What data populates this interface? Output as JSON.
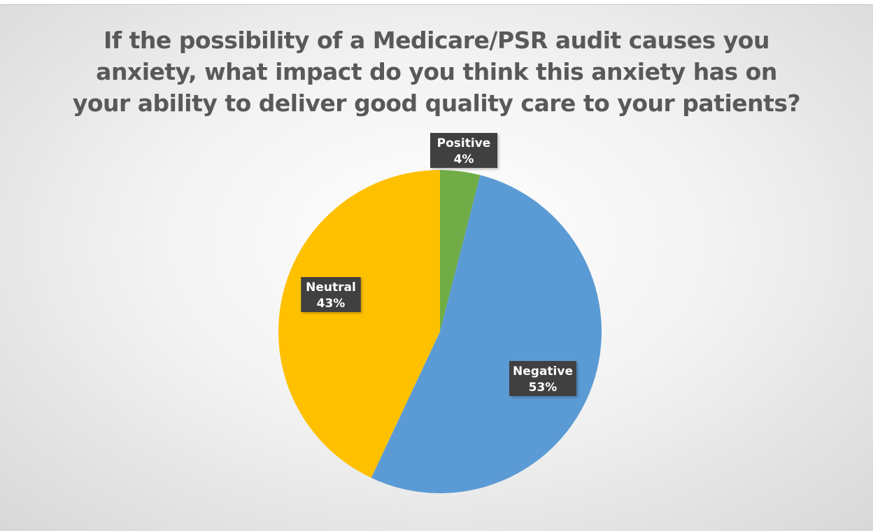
{
  "chart_data": {
    "type": "pie",
    "title_lines": [
      "If the possibility of a Medicare/PSR audit causes you",
      "anxiety, what impact do you think this anxiety has on",
      "your ability to deliver good quality care to your patients?"
    ],
    "categories": [
      "Positive",
      "Negative",
      "Neutral"
    ],
    "values": [
      4,
      53,
      43
    ],
    "value_labels": [
      "4%",
      "53%",
      "43%"
    ],
    "colors": [
      "#70ad47",
      "#5b9bd5",
      "#ffc000"
    ],
    "start_angle": "12 o'clock",
    "direction": "clockwise",
    "legend": "none",
    "data_labels": "category and percentage"
  }
}
